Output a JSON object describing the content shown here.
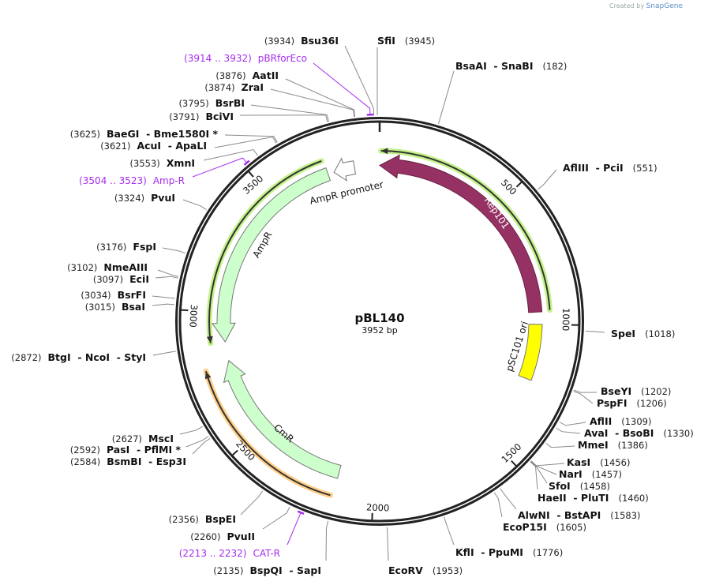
{
  "header": {
    "credit": "Created by",
    "brand": "SnapGene"
  },
  "plasmid": {
    "name": "pBL140",
    "length_label": "3952 bp",
    "length": 3952
  },
  "ticks": [
    {
      "bp": 500,
      "label": "500"
    },
    {
      "bp": 1000,
      "label": "1000"
    },
    {
      "bp": 1500,
      "label": "1500"
    },
    {
      "bp": 2000,
      "label": "2000"
    },
    {
      "bp": 2500,
      "label": "2500"
    },
    {
      "bp": 3000,
      "label": "3000"
    },
    {
      "bp": 3500,
      "label": "3500"
    }
  ],
  "features": [
    {
      "name": "Rep101",
      "start": 0,
      "end": 951,
      "direction": -1,
      "color": "#963263"
    },
    {
      "name": "pSC101 ori",
      "start": 1000,
      "end": 1222,
      "direction": 0,
      "color": "#ffff00"
    },
    {
      "name": "AmpR",
      "start": 2881,
      "end": 3740,
      "direction": -1,
      "color": "#ccffcc"
    },
    {
      "name": "AmpR promoter",
      "start": 3765,
      "end": 3850,
      "direction": -1,
      "color": "#ffffff"
    },
    {
      "name": "CmR",
      "start": 2141,
      "end": 2804,
      "direction": 1,
      "color": "#ccffcc"
    }
  ],
  "orfs": [
    {
      "start": 5,
      "end": 946,
      "direction": -1,
      "color": "#c4f28a"
    },
    {
      "start": 2883,
      "end": 3733,
      "direction": -1,
      "color": "#c4f28a"
    },
    {
      "start": 2150,
      "end": 2788,
      "direction": 1,
      "color": "#ffd08a"
    }
  ],
  "sites": [
    {
      "pos": "(3934)",
      "name": "Bsu36I",
      "bp": 3934,
      "kind": "enzyme"
    },
    {
      "pos": "(3914 .. 3932)",
      "name": "pBRforEco",
      "bp": 3923,
      "kind": "primer"
    },
    {
      "pos": "(3876)",
      "name": "AatII",
      "bp": 3876,
      "kind": "enzyme"
    },
    {
      "pos": "(3874)",
      "name": "ZraI",
      "bp": 3874,
      "kind": "enzyme"
    },
    {
      "pos": "(3795)",
      "name": "BsrBI",
      "bp": 3795,
      "kind": "enzyme"
    },
    {
      "pos": "(3791)",
      "name": "BciVI",
      "bp": 3791,
      "kind": "enzyme"
    },
    {
      "pos": "(3625)",
      "name": "BaeGI  - Bme1580I *",
      "bp": 3625,
      "kind": "enzyme"
    },
    {
      "pos": "(3621)",
      "name": "AcuI  - ApaLI",
      "bp": 3621,
      "kind": "enzyme"
    },
    {
      "pos": "(3553)",
      "name": "XmnI",
      "bp": 3553,
      "kind": "enzyme"
    },
    {
      "pos": "(3504 .. 3523)",
      "name": "Amp-R",
      "bp": 3513,
      "kind": "primer"
    },
    {
      "pos": "(3324)",
      "name": "PvuI",
      "bp": 3324,
      "kind": "enzyme"
    },
    {
      "pos": "(3176)",
      "name": "FspI",
      "bp": 3176,
      "kind": "enzyme"
    },
    {
      "pos": "(3102)",
      "name": "NmeAIII",
      "bp": 3102,
      "kind": "enzyme"
    },
    {
      "pos": "(3097)",
      "name": "EciI",
      "bp": 3097,
      "kind": "enzyme"
    },
    {
      "pos": "(3034)",
      "name": "BsrFI",
      "bp": 3034,
      "kind": "enzyme"
    },
    {
      "pos": "(3015)",
      "name": "BsaI",
      "bp": 3015,
      "kind": "enzyme"
    },
    {
      "pos": "(2872)",
      "name": "BtgI  - NcoI  - StyI",
      "bp": 2872,
      "kind": "enzyme"
    },
    {
      "pos": "(2627)",
      "name": "MscI",
      "bp": 2627,
      "kind": "enzyme"
    },
    {
      "pos": "(2592)",
      "name": "PasI  - PflMI *",
      "bp": 2592,
      "kind": "enzyme"
    },
    {
      "pos": "(2584)",
      "name": "BsmBI  - Esp3I",
      "bp": 2584,
      "kind": "enzyme"
    },
    {
      "pos": "(2356)",
      "name": "BspEI",
      "bp": 2356,
      "kind": "enzyme"
    },
    {
      "pos": "(2260)",
      "name": "PvuII",
      "bp": 2260,
      "kind": "enzyme"
    },
    {
      "pos": "(2213 .. 2232)",
      "name": "CAT-R",
      "bp": 2222,
      "kind": "primer"
    },
    {
      "pos": "(2135)",
      "name": "BspQI  - SapI",
      "bp": 2135,
      "kind": "enzyme"
    },
    {
      "pos": "(3945)",
      "name": "SfiI",
      "bp": 3945,
      "kind": "enzyme"
    },
    {
      "pos": "(182)",
      "name": "BsaAI  - SnaBI",
      "bp": 182,
      "kind": "enzyme"
    },
    {
      "pos": "(551)",
      "name": "AflIII  - PciI",
      "bp": 551,
      "kind": "enzyme"
    },
    {
      "pos": "(1018)",
      "name": "SpeI",
      "bp": 1018,
      "kind": "enzyme"
    },
    {
      "pos": "(1202)",
      "name": "BseYI",
      "bp": 1202,
      "kind": "enzyme"
    },
    {
      "pos": "(1206)",
      "name": "PspFI",
      "bp": 1206,
      "kind": "enzyme"
    },
    {
      "pos": "(1309)",
      "name": "AflII",
      "bp": 1309,
      "kind": "enzyme"
    },
    {
      "pos": "(1330)",
      "name": "AvaI  - BsoBI",
      "bp": 1330,
      "kind": "enzyme"
    },
    {
      "pos": "(1386)",
      "name": "MmeI",
      "bp": 1386,
      "kind": "enzyme"
    },
    {
      "pos": "(1456)",
      "name": "KasI",
      "bp": 1456,
      "kind": "enzyme"
    },
    {
      "pos": "(1457)",
      "name": "NarI",
      "bp": 1457,
      "kind": "enzyme"
    },
    {
      "pos": "(1458)",
      "name": "SfoI",
      "bp": 1458,
      "kind": "enzyme"
    },
    {
      "pos": "(1460)",
      "name": "HaeII  - PluTI",
      "bp": 1460,
      "kind": "enzyme"
    },
    {
      "pos": "(1583)",
      "name": "AlwNI  - BstAPI",
      "bp": 1583,
      "kind": "enzyme"
    },
    {
      "pos": "(1605)",
      "name": "EcoP15I",
      "bp": 1605,
      "kind": "enzyme"
    },
    {
      "pos": "(1776)",
      "name": "KflI  - PpuMI",
      "bp": 1776,
      "kind": "enzyme"
    },
    {
      "pos": "(1953)",
      "name": "EcoRV",
      "bp": 1953,
      "kind": "enzyme"
    }
  ]
}
